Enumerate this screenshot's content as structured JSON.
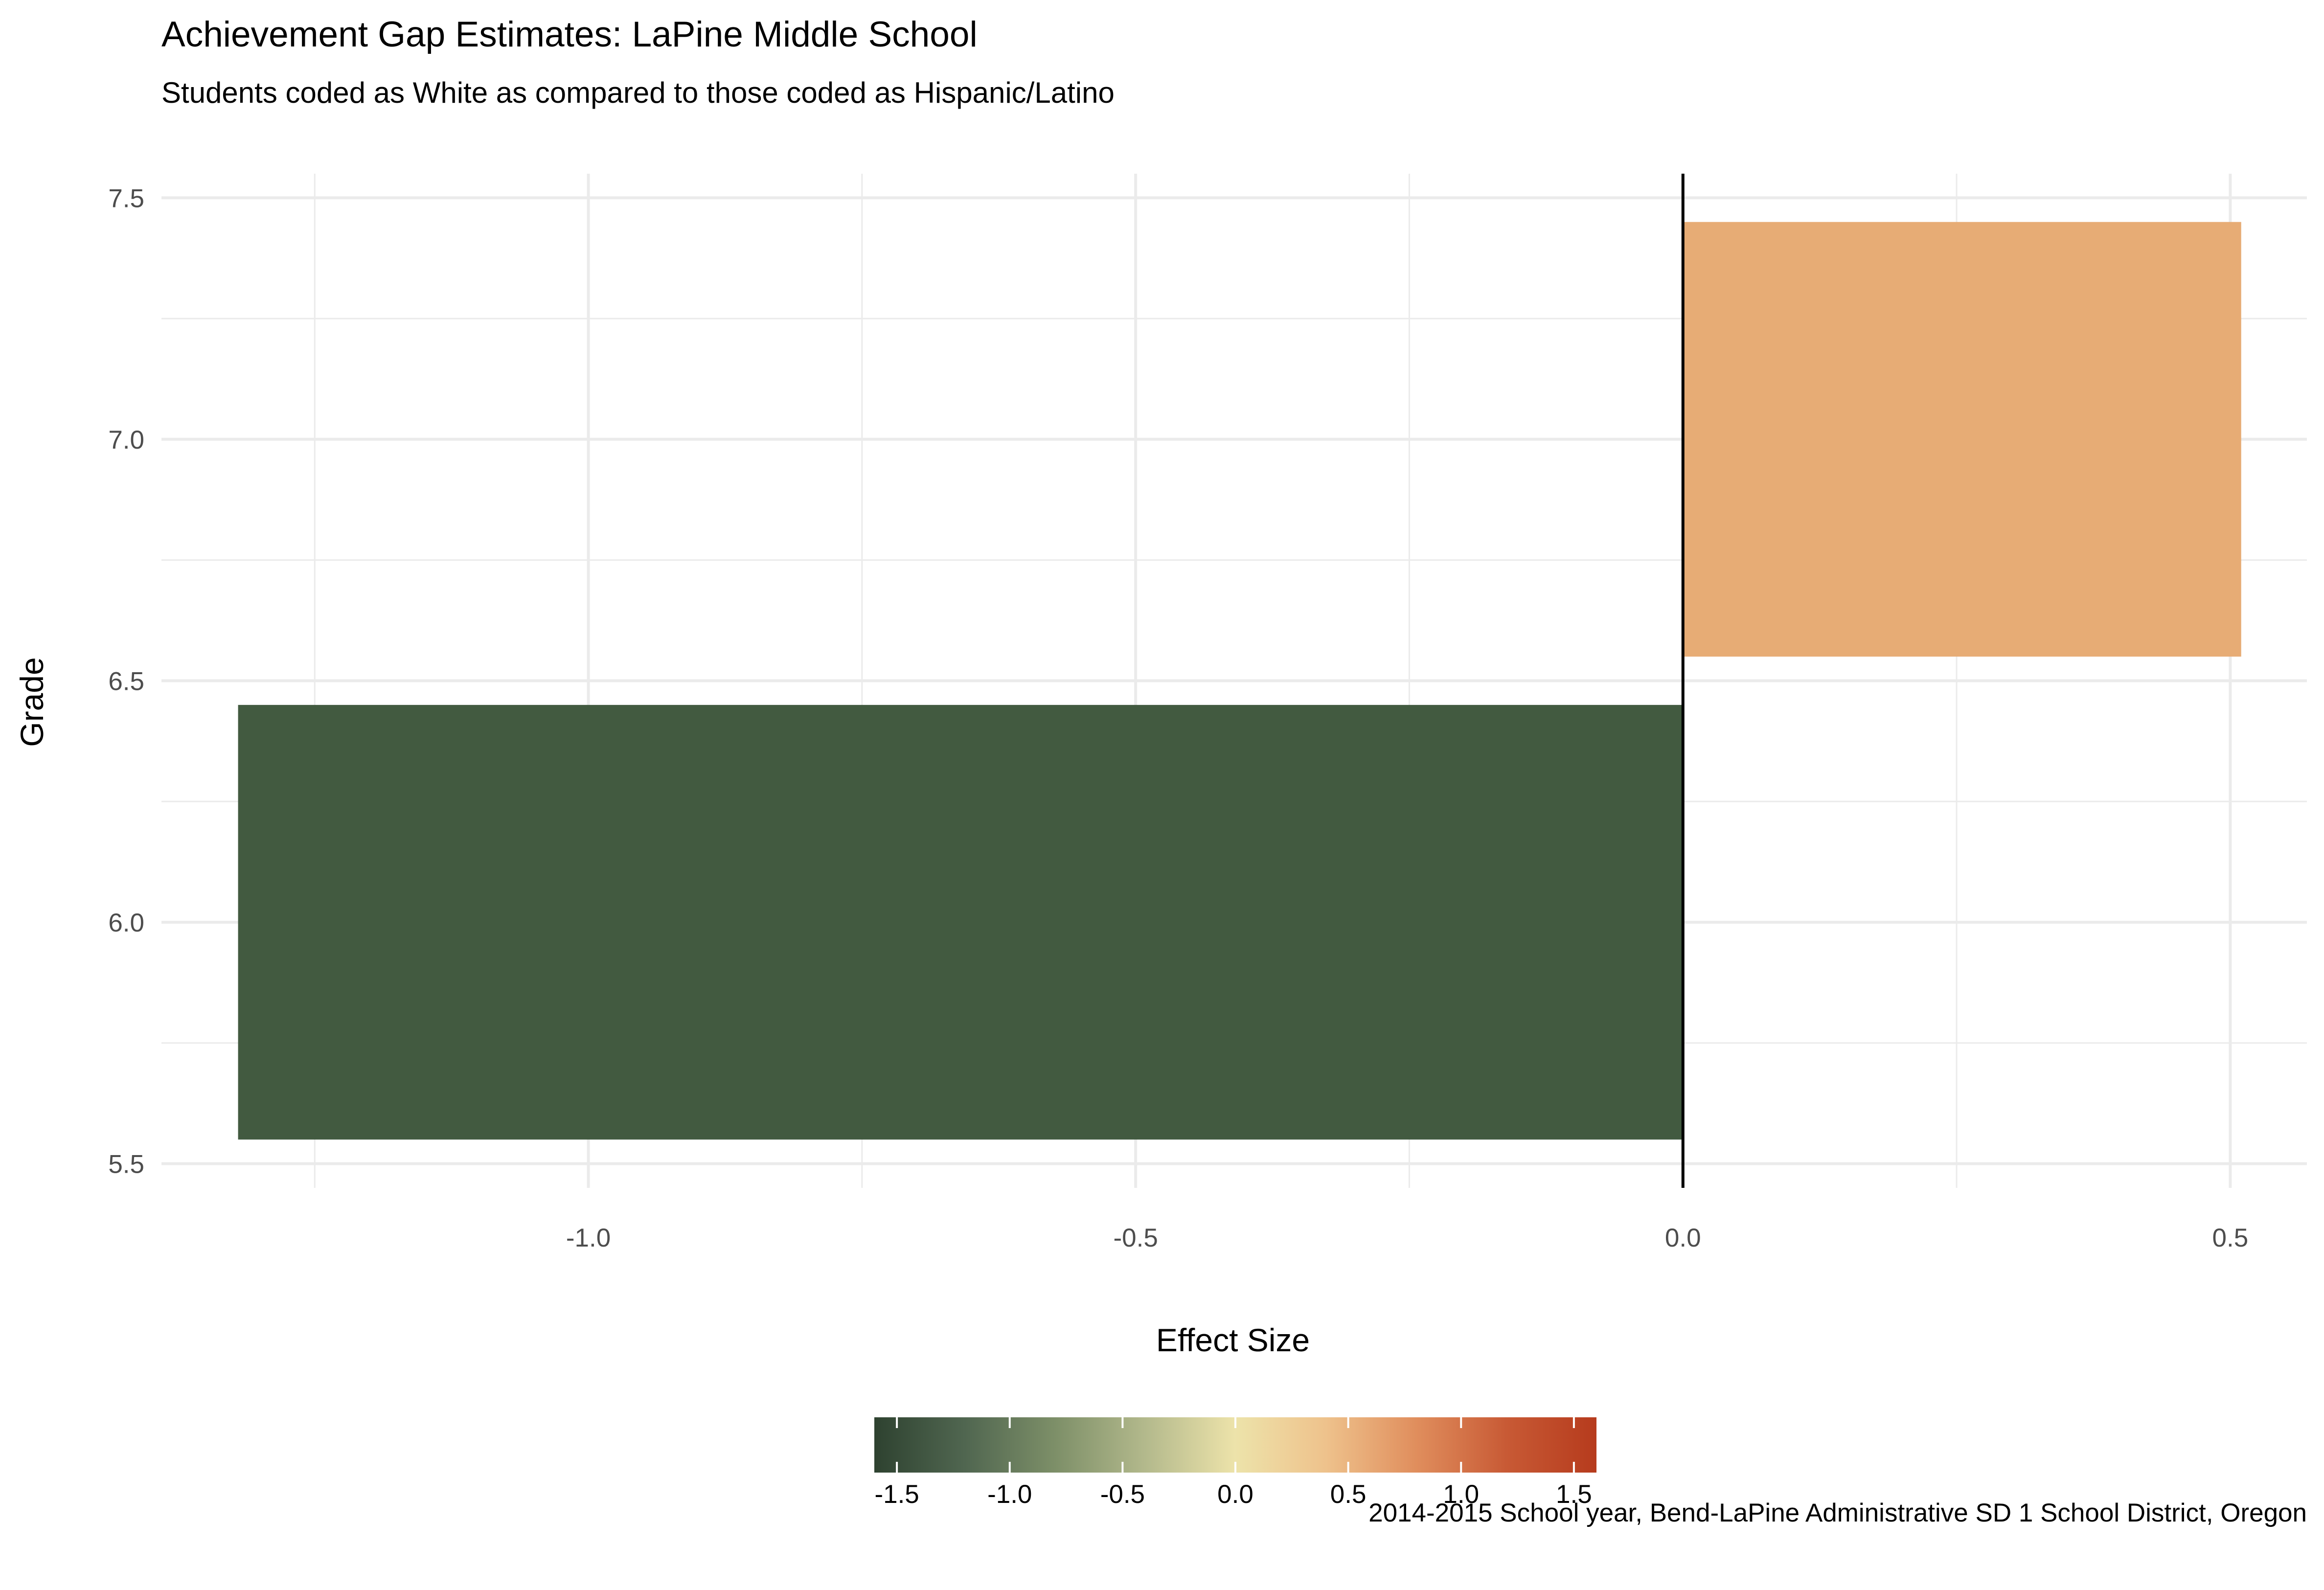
{
  "chart_data": {
    "type": "bar",
    "orientation": "horizontal",
    "title": "Achievement Gap Estimates: LaPine Middle School",
    "subtitle": "Students coded as White as compared to those coded as Hispanic/Latino",
    "xlabel": "Effect Size",
    "ylabel": "Grade",
    "caption": "2014-2015 School year, Bend-LaPine Administrative SD 1 School District, Oregon",
    "xlim": [
      -1.39,
      0.57
    ],
    "ylim": [
      5.45,
      7.55
    ],
    "x_ticks": [
      -1.0,
      -0.5,
      0.0,
      0.5
    ],
    "x_tick_labels": [
      "-1.0",
      "-0.5",
      "0.0",
      "0.5"
    ],
    "y_ticks": [
      5.5,
      6.0,
      6.5,
      7.0,
      7.5
    ],
    "y_tick_labels": [
      "5.5",
      "6.0",
      "6.5",
      "7.0",
      "7.5"
    ],
    "grid": true,
    "zero_line": true,
    "bars": [
      {
        "grade": 6,
        "value": -1.32,
        "color": "#425a40"
      },
      {
        "grade": 7,
        "value": 0.51,
        "color": "#e7ac75"
      }
    ],
    "legend": {
      "type": "colorbar",
      "position": "bottom",
      "range": [
        -1.6,
        1.6
      ],
      "ticks": [
        -1.5,
        -1.0,
        -0.5,
        0.0,
        0.5,
        1.0,
        1.5
      ],
      "tick_labels": [
        "-1.5",
        "-1.0",
        "-0.5",
        "0.0",
        "0.5",
        "1.0",
        "1.5"
      ],
      "colors": [
        "#2e4230",
        "#506650",
        "#7d8f68",
        "#b3b98c",
        "#ede3aa",
        "#eec28c",
        "#e08e5d",
        "#c85a35",
        "#b63b1d"
      ]
    }
  }
}
